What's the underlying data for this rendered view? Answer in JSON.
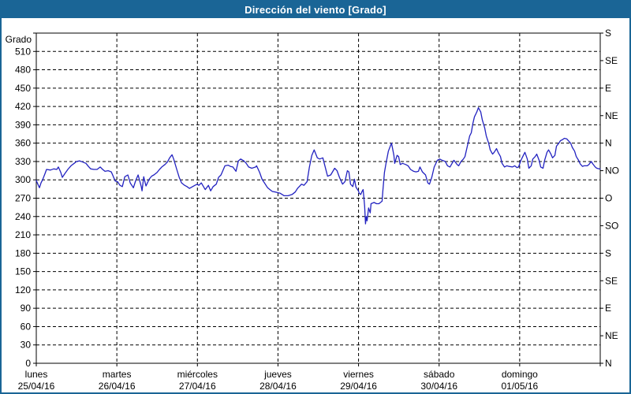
{
  "window": {
    "title": "Dirección del viento [Grado]"
  },
  "colors": {
    "titlebar_bg": "#1a6596",
    "titlebar_text": "#ffffff",
    "frame_border": "#1a6596",
    "grid": "#000000",
    "line": "#2222c0",
    "plot_bg": "#ffffff"
  },
  "chart_data": {
    "type": "line",
    "title": "Dirección del viento [Grado]",
    "grid": "dashed",
    "legend": "none",
    "ylim": [
      0,
      540
    ],
    "xlim_days": [
      0,
      7
    ],
    "y_left": {
      "label": "Grado",
      "tick_step": 30,
      "ticks": [
        0,
        30,
        60,
        90,
        120,
        150,
        180,
        210,
        240,
        270,
        300,
        330,
        360,
        390,
        420,
        450,
        480,
        510
      ]
    },
    "y_right": {
      "ticks": [
        {
          "deg": 0,
          "label": "N"
        },
        {
          "deg": 45,
          "label": "NE"
        },
        {
          "deg": 90,
          "label": "E"
        },
        {
          "deg": 135,
          "label": "SE"
        },
        {
          "deg": 180,
          "label": "S"
        },
        {
          "deg": 225,
          "label": "SO"
        },
        {
          "deg": 270,
          "label": "O"
        },
        {
          "deg": 315,
          "label": "NO"
        },
        {
          "deg": 360,
          "label": "N"
        },
        {
          "deg": 405,
          "label": "NE"
        },
        {
          "deg": 450,
          "label": "E"
        },
        {
          "deg": 495,
          "label": "SE"
        },
        {
          "deg": 540,
          "label": "S"
        }
      ]
    },
    "x_axis": {
      "days": [
        {
          "name": "lunes",
          "date": "25/04/16"
        },
        {
          "name": "martes",
          "date": "26/04/16"
        },
        {
          "name": "miércoles",
          "date": "27/04/16"
        },
        {
          "name": "jueves",
          "date": "28/04/16"
        },
        {
          "name": "viernes",
          "date": "29/04/16"
        },
        {
          "name": "sábado",
          "date": "30/04/16"
        },
        {
          "name": "domingo",
          "date": "01/05/16"
        }
      ]
    },
    "series": [
      {
        "name": "Dirección del viento [Grado]",
        "x_unit": "days_since_2016-04-25",
        "y_unit": "deg",
        "points": [
          [
            0.0,
            299
          ],
          [
            0.02,
            293
          ],
          [
            0.039,
            287
          ],
          [
            0.059,
            295
          ],
          [
            0.078,
            300
          ],
          [
            0.108,
            310
          ],
          [
            0.127,
            317
          ],
          [
            0.176,
            316
          ],
          [
            0.216,
            318
          ],
          [
            0.255,
            317
          ],
          [
            0.274,
            321
          ],
          [
            0.304,
            312
          ],
          [
            0.323,
            304
          ],
          [
            0.353,
            310
          ],
          [
            0.392,
            317
          ],
          [
            0.431,
            323
          ],
          [
            0.47,
            327
          ],
          [
            0.5,
            330
          ],
          [
            0.539,
            331
          ],
          [
            0.578,
            329
          ],
          [
            0.617,
            327
          ],
          [
            0.647,
            322
          ],
          [
            0.676,
            318
          ],
          [
            0.715,
            317
          ],
          [
            0.755,
            317
          ],
          [
            0.794,
            321
          ],
          [
            0.823,
            317
          ],
          [
            0.853,
            314
          ],
          [
            0.892,
            315
          ],
          [
            0.931,
            313
          ],
          [
            0.951,
            307
          ],
          [
            0.98,
            298
          ],
          [
            1.009,
            297
          ],
          [
            1.039,
            291
          ],
          [
            1.068,
            289
          ],
          [
            1.098,
            305
          ],
          [
            1.137,
            308
          ],
          [
            1.166,
            295
          ],
          [
            1.205,
            287
          ],
          [
            1.235,
            299
          ],
          [
            1.264,
            308
          ],
          [
            1.303,
            289
          ],
          [
            1.313,
            282
          ],
          [
            1.333,
            305
          ],
          [
            1.352,
            295
          ],
          [
            1.362,
            290
          ],
          [
            1.401,
            301
          ],
          [
            1.431,
            306
          ],
          [
            1.46,
            308
          ],
          [
            1.499,
            312
          ],
          [
            1.529,
            317
          ],
          [
            1.558,
            321
          ],
          [
            1.597,
            325
          ],
          [
            1.627,
            329
          ],
          [
            1.656,
            336
          ],
          [
            1.685,
            341
          ],
          [
            1.705,
            334
          ],
          [
            1.744,
            317
          ],
          [
            1.774,
            304
          ],
          [
            1.803,
            295
          ],
          [
            1.842,
            291
          ],
          [
            1.871,
            289
          ],
          [
            1.901,
            286
          ],
          [
            1.94,
            289
          ],
          [
            1.969,
            291
          ],
          [
            1.999,
            293
          ],
          [
            2.018,
            291
          ],
          [
            2.048,
            295
          ],
          [
            2.097,
            284
          ],
          [
            2.136,
            291
          ],
          [
            2.165,
            282
          ],
          [
            2.195,
            289
          ],
          [
            2.234,
            293
          ],
          [
            2.263,
            304
          ],
          [
            2.293,
            308
          ],
          [
            2.342,
            323
          ],
          [
            2.381,
            324
          ],
          [
            2.41,
            322
          ],
          [
            2.44,
            321
          ],
          [
            2.479,
            314
          ],
          [
            2.508,
            331
          ],
          [
            2.538,
            334
          ],
          [
            2.577,
            331
          ],
          [
            2.606,
            327
          ],
          [
            2.636,
            321
          ],
          [
            2.675,
            319
          ],
          [
            2.724,
            321
          ],
          [
            2.734,
            323
          ],
          [
            2.773,
            312
          ],
          [
            2.802,
            301
          ],
          [
            2.832,
            295
          ],
          [
            2.871,
            287
          ],
          [
            2.9,
            284
          ],
          [
            2.93,
            281
          ],
          [
            2.969,
            280
          ],
          [
            2.998,
            279
          ],
          [
            3.028,
            278
          ],
          [
            3.077,
            274
          ],
          [
            3.126,
            274
          ],
          [
            3.175,
            276
          ],
          [
            3.214,
            280
          ],
          [
            3.243,
            286
          ],
          [
            3.292,
            293
          ],
          [
            3.322,
            291
          ],
          [
            3.361,
            297
          ],
          [
            3.39,
            321
          ],
          [
            3.42,
            340
          ],
          [
            3.449,
            349
          ],
          [
            3.488,
            336
          ],
          [
            3.518,
            334
          ],
          [
            3.557,
            336
          ],
          [
            3.586,
            321
          ],
          [
            3.616,
            306
          ],
          [
            3.655,
            308
          ],
          [
            3.704,
            319
          ],
          [
            3.733,
            315
          ],
          [
            3.763,
            304
          ],
          [
            3.802,
            293
          ],
          [
            3.831,
            297
          ],
          [
            3.861,
            315
          ],
          [
            3.88,
            313
          ],
          [
            3.9,
            293
          ],
          [
            3.929,
            289
          ],
          [
            3.949,
            301
          ],
          [
            3.968,
            288
          ],
          [
            3.998,
            282
          ],
          [
            4.008,
            278
          ],
          [
            4.027,
            276
          ],
          [
            4.047,
            282
          ],
          [
            4.057,
            284
          ],
          [
            4.076,
            257
          ],
          [
            4.086,
            228
          ],
          [
            4.096,
            240
          ],
          [
            4.106,
            233
          ],
          [
            4.125,
            254
          ],
          [
            4.145,
            246
          ],
          [
            4.155,
            261
          ],
          [
            4.194,
            263
          ],
          [
            4.223,
            261
          ],
          [
            4.253,
            261
          ],
          [
            4.272,
            263
          ],
          [
            4.292,
            265
          ],
          [
            4.302,
            282
          ],
          [
            4.321,
            312
          ],
          [
            4.341,
            327
          ],
          [
            4.37,
            347
          ],
          [
            4.4,
            357
          ],
          [
            4.41,
            360
          ],
          [
            4.439,
            340
          ],
          [
            4.449,
            327
          ],
          [
            4.478,
            340
          ],
          [
            4.498,
            338
          ],
          [
            4.517,
            325
          ],
          [
            4.547,
            327
          ],
          [
            4.586,
            325
          ],
          [
            4.615,
            323
          ],
          [
            4.645,
            317
          ],
          [
            4.684,
            314
          ],
          [
            4.713,
            313
          ],
          [
            4.743,
            314
          ],
          [
            4.762,
            321
          ],
          [
            4.792,
            313
          ],
          [
            4.831,
            308
          ],
          [
            4.86,
            295
          ],
          [
            4.88,
            293
          ],
          [
            4.909,
            304
          ],
          [
            4.939,
            321
          ],
          [
            4.978,
            332
          ],
          [
            5.007,
            334
          ],
          [
            5.037,
            332
          ],
          [
            5.076,
            330
          ],
          [
            5.105,
            323
          ],
          [
            5.135,
            321
          ],
          [
            5.174,
            330
          ],
          [
            5.184,
            332
          ],
          [
            5.223,
            325
          ],
          [
            5.243,
            323
          ],
          [
            5.272,
            330
          ],
          [
            5.301,
            334
          ],
          [
            5.321,
            338
          ],
          [
            5.35,
            355
          ],
          [
            5.38,
            372
          ],
          [
            5.399,
            377
          ],
          [
            5.419,
            392
          ],
          [
            5.438,
            403
          ],
          [
            5.468,
            411
          ],
          [
            5.487,
            418
          ],
          [
            5.517,
            411
          ],
          [
            5.536,
            398
          ],
          [
            5.566,
            385
          ],
          [
            5.585,
            372
          ],
          [
            5.615,
            360
          ],
          [
            5.634,
            349
          ],
          [
            5.664,
            342
          ],
          [
            5.683,
            345
          ],
          [
            5.713,
            351
          ],
          [
            5.732,
            345
          ],
          [
            5.762,
            338
          ],
          [
            5.781,
            327
          ],
          [
            5.811,
            321
          ],
          [
            5.84,
            323
          ],
          [
            5.869,
            322
          ],
          [
            5.909,
            321
          ],
          [
            5.938,
            323
          ],
          [
            5.967,
            320
          ],
          [
            5.987,
            321
          ],
          [
            6.016,
            332
          ],
          [
            6.045,
            340
          ],
          [
            6.065,
            345
          ],
          [
            6.094,
            334
          ],
          [
            6.114,
            319
          ],
          [
            6.143,
            323
          ],
          [
            6.163,
            334
          ],
          [
            6.192,
            338
          ],
          [
            6.212,
            342
          ],
          [
            6.241,
            332
          ],
          [
            6.261,
            321
          ],
          [
            6.29,
            319
          ],
          [
            6.31,
            332
          ],
          [
            6.339,
            345
          ],
          [
            6.359,
            349
          ],
          [
            6.388,
            342
          ],
          [
            6.408,
            336
          ],
          [
            6.437,
            340
          ],
          [
            6.457,
            355
          ],
          [
            6.486,
            360
          ],
          [
            6.506,
            364
          ],
          [
            6.535,
            366
          ],
          [
            6.555,
            368
          ],
          [
            6.584,
            367
          ],
          [
            6.604,
            364
          ],
          [
            6.633,
            360
          ],
          [
            6.653,
            353
          ],
          [
            6.682,
            347
          ],
          [
            6.702,
            338
          ],
          [
            6.731,
            332
          ],
          [
            6.751,
            326
          ],
          [
            6.78,
            322
          ],
          [
            6.8,
            323
          ],
          [
            6.839,
            323
          ],
          [
            6.859,
            325
          ],
          [
            6.888,
            330
          ],
          [
            6.908,
            326
          ],
          [
            6.937,
            321
          ],
          [
            6.957,
            319
          ],
          [
            6.986,
            318
          ],
          [
            7.0,
            318
          ]
        ]
      }
    ]
  }
}
